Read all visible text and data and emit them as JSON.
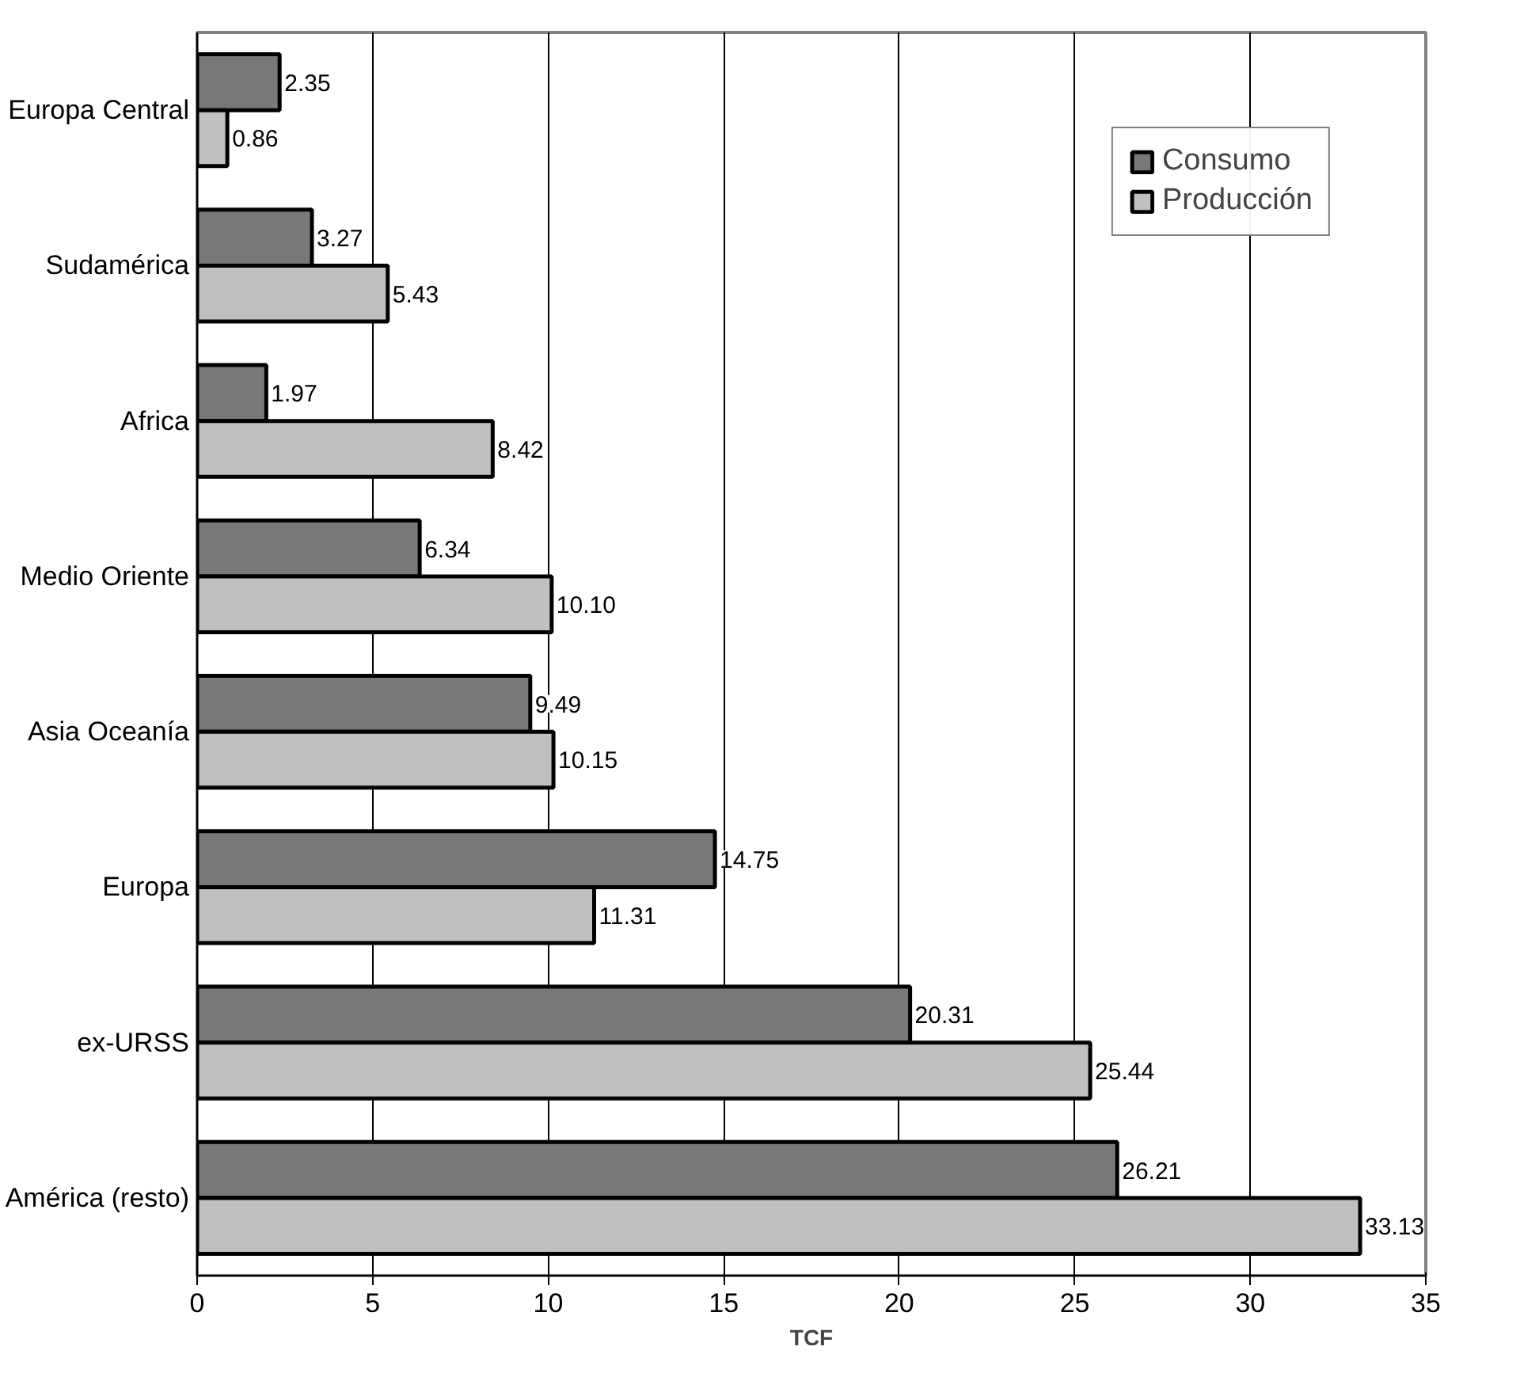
{
  "chart_data": {
    "type": "bar",
    "orientation": "horizontal",
    "xlabel": "TCF",
    "categories": [
      "Europa Central",
      "Sudamérica",
      "Africa",
      "Medio Oriente",
      "Asia Oceanía",
      "Europa",
      "ex-URSS",
      "América (resto)"
    ],
    "series": [
      {
        "name": "Consumo",
        "color": "#787878",
        "values": [
          2.35,
          3.27,
          1.97,
          6.34,
          9.49,
          14.75,
          20.31,
          26.21
        ],
        "value_labels": [
          "2.35",
          "3.27",
          "1.97",
          "6.34",
          "9.49",
          "14.75",
          "20.31",
          "26.21"
        ]
      },
      {
        "name": "Producción",
        "color": "#c0c0c0",
        "values": [
          0.86,
          5.43,
          8.42,
          10.1,
          10.15,
          11.31,
          25.44,
          33.13
        ],
        "value_labels": [
          "0.86",
          "5.43",
          "8.42",
          "10.10",
          "10.15",
          "11.31",
          "25.44",
          "33.13"
        ]
      }
    ],
    "xlim": [
      0,
      35
    ],
    "xticks": [
      0,
      5,
      10,
      15,
      20,
      25,
      30,
      35
    ],
    "grid": "x",
    "legend": "top right"
  }
}
